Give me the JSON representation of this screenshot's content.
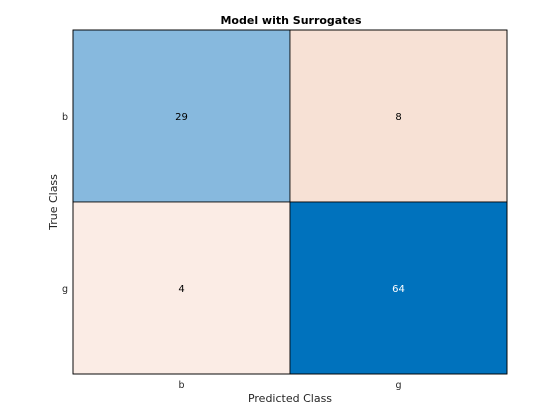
{
  "chart_data": {
    "type": "heatmap",
    "title": "Model with Surrogates",
    "xlabel": "Predicted Class",
    "ylabel": "True Class",
    "x_categories": [
      "b",
      "g"
    ],
    "y_categories": [
      "b",
      "g"
    ],
    "values": [
      [
        29,
        8
      ],
      [
        4,
        64
      ]
    ],
    "colors": {
      "diagonal_max": "#0072bd",
      "diagonal_light": "#87b9de",
      "offdiag_max": "#f7e1d5",
      "offdiag_light": "#fbece5",
      "grid_line": "#000000"
    },
    "grid": false
  }
}
